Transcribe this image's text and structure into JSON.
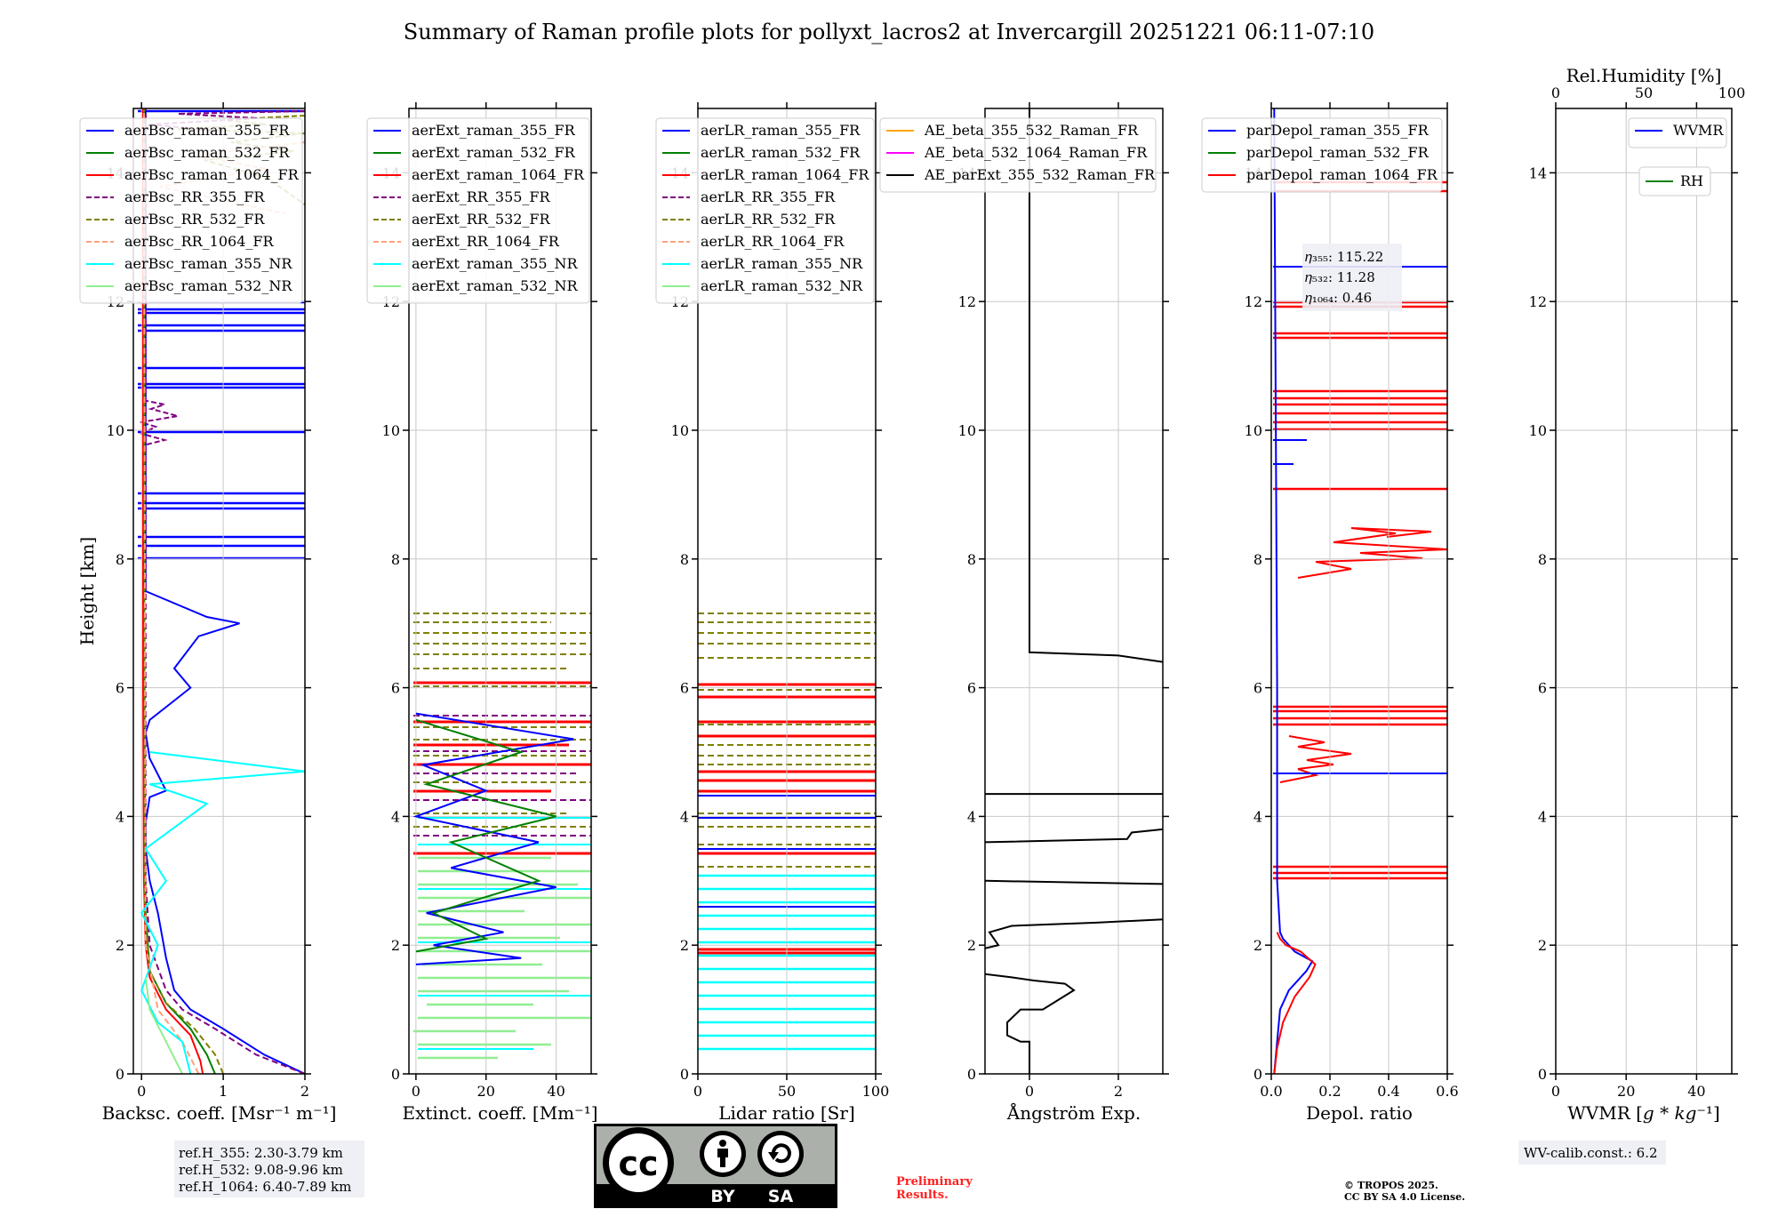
{
  "title": "Summary of Raman profile plots for pollyxt_lacros2 at Invercargill 20251221 06:11-07:10",
  "colors": {
    "blue": "#0000ff",
    "green": "#008000",
    "red": "#ff0000",
    "purple": "#800080",
    "olive": "#808000",
    "salmon": "#ffa07a",
    "cyan": "#00ffff",
    "lightgreen": "#90ee90",
    "orange": "#ffa500",
    "magenta": "#ff00ff",
    "black": "#000000"
  },
  "chart_data": [
    {
      "id": "bsc",
      "type": "line",
      "xlabel": "Backsc. coeff. [Msr⁻¹ m⁻¹]",
      "ylabel": "Height [km]",
      "xlim": [
        -0.1,
        2.0
      ],
      "ylim": [
        0,
        15
      ],
      "xticks": [
        0,
        1,
        2
      ],
      "xticklabels": [
        "0",
        "1",
        "2"
      ],
      "yticks": [
        0,
        2,
        4,
        6,
        8,
        10,
        12,
        14
      ],
      "yticklabels": [
        "0",
        "2",
        "4",
        "6",
        "8",
        "10",
        "12",
        "14"
      ],
      "legend": [
        "aerBsc_raman_355_FR",
        "aerBsc_raman_532_FR",
        "aerBsc_raman_1064_FR",
        "aerBsc_RR_355_FR",
        "aerBsc_RR_532_FR",
        "aerBsc_RR_1064_FR",
        "aerBsc_raman_355_NR",
        "aerBsc_raman_532_NR"
      ],
      "legend_colors": [
        "blue",
        "green",
        "red",
        "purple",
        "olive",
        "salmon",
        "cyan",
        "lightgreen"
      ],
      "legend_dashed": [
        false,
        false,
        false,
        true,
        true,
        true,
        false,
        false
      ],
      "series": [
        {
          "name": "aerBsc_raman_355_FR",
          "color": "blue",
          "x": [
            2.0,
            1.5,
            1.0,
            0.6,
            0.4,
            0.3,
            0.2,
            0.1,
            0.05,
            0.05,
            0.1,
            0.3,
            0.1,
            0.05,
            0.1,
            0.4,
            0.6,
            0.4,
            0.7,
            1.2,
            0.8,
            0.05,
            0.05
          ],
          "y": [
            0.0,
            0.3,
            0.7,
            1.0,
            1.3,
            1.8,
            2.5,
            3.0,
            3.5,
            3.9,
            4.3,
            4.4,
            4.9,
            5.3,
            5.5,
            5.8,
            6.0,
            6.3,
            6.8,
            7.0,
            7.1,
            7.5,
            15.0
          ]
        },
        {
          "name": "aerBsc_raman_532_FR",
          "color": "green",
          "x": [
            0.9,
            0.8,
            0.6,
            0.3,
            0.1,
            0.05,
            0.04,
            0.03,
            0.03
          ],
          "y": [
            0.0,
            0.3,
            0.7,
            1.1,
            1.6,
            2.5,
            5.0,
            8.0,
            15.0
          ]
        },
        {
          "name": "aerBsc_raman_1064_FR",
          "color": "red",
          "x": [
            0.75,
            0.72,
            0.6,
            0.3,
            0.1,
            0.05,
            0.03,
            0.02,
            0.02
          ],
          "y": [
            0.0,
            0.2,
            0.6,
            1.0,
            1.5,
            2.0,
            3.0,
            6.0,
            15.0
          ]
        },
        {
          "name": "aerBsc_RR_355_FR",
          "color": "purple",
          "x": [
            2.0,
            1.4,
            0.9,
            0.5,
            0.3,
            0.1,
            0.05,
            0.05
          ],
          "y": [
            0.0,
            0.3,
            0.7,
            1.0,
            1.3,
            2.0,
            3.0,
            15.0
          ]
        },
        {
          "name": "aerBsc_RR_532_FR",
          "color": "olive",
          "x": [
            1.0,
            0.9,
            0.65,
            0.3,
            0.1,
            0.04,
            0.03
          ],
          "y": [
            0.0,
            0.3,
            0.7,
            1.1,
            1.6,
            2.5,
            15.0
          ]
        },
        {
          "name": "aerBsc_RR_1064_FR",
          "color": "salmon",
          "x": [
            0.7,
            0.5,
            0.2,
            0.05,
            0.03
          ],
          "y": [
            0.0,
            0.5,
            1.0,
            2.0,
            15.0
          ]
        },
        {
          "name": "aerBsc_raman_355_NR",
          "color": "cyan",
          "x": [
            0.6,
            0.5,
            0.2,
            0.0,
            0.2,
            0.0,
            0.3,
            0.05,
            0.8,
            0.1,
            2.0,
            0.1
          ],
          "y": [
            0.0,
            0.5,
            0.8,
            1.3,
            2.0,
            2.5,
            3.0,
            3.5,
            4.2,
            4.5,
            4.7,
            5.0
          ]
        },
        {
          "name": "aerBsc_raman_532_NR",
          "color": "lightgreen",
          "x": [
            0.5,
            0.3,
            0.1,
            0.05
          ],
          "y": [
            0.0,
            0.5,
            1.0,
            1.5
          ]
        }
      ]
    },
    {
      "id": "ext",
      "type": "line",
      "xlabel": "Extinct. coeff. [Mm⁻¹]",
      "ylabel": "",
      "xlim": [
        -2,
        50
      ],
      "ylim": [
        0,
        15
      ],
      "xticks": [
        0,
        20,
        40
      ],
      "xticklabels": [
        "0",
        "20",
        "40"
      ],
      "yticks": [
        0,
        2,
        4,
        6,
        8,
        10,
        12,
        14
      ],
      "yticklabels": [
        "0",
        "2",
        "4",
        "6",
        "8",
        "10",
        "12",
        "14"
      ],
      "legend": [
        "aerExt_raman_355_FR",
        "aerExt_raman_532_FR",
        "aerExt_raman_1064_FR",
        "aerExt_RR_355_FR",
        "aerExt_RR_532_FR",
        "aerExt_RR_1064_FR",
        "aerExt_raman_355_NR",
        "aerExt_raman_532_NR"
      ],
      "legend_colors": [
        "blue",
        "green",
        "red",
        "purple",
        "olive",
        "salmon",
        "cyan",
        "lightgreen"
      ],
      "legend_dashed": [
        false,
        false,
        false,
        true,
        true,
        true,
        false,
        false
      ],
      "series": [
        {
          "name": "aerExt_raman_355_FR",
          "color": "blue",
          "x": [
            0,
            30,
            5,
            25,
            3,
            40,
            10,
            35,
            0,
            20,
            2,
            45,
            0
          ],
          "y": [
            1.7,
            1.8,
            2.0,
            2.2,
            2.5,
            2.9,
            3.2,
            3.6,
            4.0,
            4.4,
            4.8,
            5.2,
            5.6
          ]
        },
        {
          "name": "aerExt_raman_532_FR",
          "color": "green",
          "x": [
            0,
            20,
            5,
            35,
            10,
            40,
            3,
            30,
            0
          ],
          "y": [
            1.9,
            2.1,
            2.5,
            3.0,
            3.6,
            4.0,
            4.5,
            5.0,
            5.5
          ]
        }
      ]
    },
    {
      "id": "lr",
      "type": "line",
      "xlabel": "Lidar ratio [Sr]",
      "ylabel": "",
      "xlim": [
        0,
        100
      ],
      "ylim": [
        0,
        15
      ],
      "xticks": [
        0,
        50,
        100
      ],
      "xticklabels": [
        "0",
        "50",
        "100"
      ],
      "yticks": [
        0,
        2,
        4,
        6,
        8,
        10,
        12,
        14
      ],
      "yticklabels": [
        "0",
        "2",
        "4",
        "6",
        "8",
        "10",
        "12",
        "14"
      ],
      "legend": [
        "aerLR_raman_355_FR",
        "aerLR_raman_532_FR",
        "aerLR_raman_1064_FR",
        "aerLR_RR_355_FR",
        "aerLR_RR_532_FR",
        "aerLR_RR_1064_FR",
        "aerLR_raman_355_NR",
        "aerLR_raman_532_NR"
      ],
      "legend_colors": [
        "blue",
        "green",
        "red",
        "purple",
        "olive",
        "salmon",
        "cyan",
        "lightgreen"
      ],
      "legend_dashed": [
        false,
        false,
        false,
        true,
        true,
        true,
        false,
        false
      ],
      "series": []
    },
    {
      "id": "ae",
      "type": "line",
      "xlabel": "Ångström Exp.",
      "ylabel": "",
      "xlim": [
        -1,
        3
      ],
      "ylim": [
        0,
        15
      ],
      "xticks": [
        0,
        2
      ],
      "xticklabels": [
        "0",
        "2"
      ],
      "yticks": [
        0,
        2,
        4,
        6,
        8,
        10,
        12,
        14
      ],
      "yticklabels": [
        "0",
        "2",
        "4",
        "6",
        "8",
        "10",
        "12",
        "14"
      ],
      "legend": [
        "AE_beta_355_532_Raman_FR",
        "AE_beta_532_1064_Raman_FR",
        "AE_parExt_355_532_Raman_FR"
      ],
      "legend_colors": [
        "orange",
        "magenta",
        "black"
      ],
      "legend_dashed": [
        false,
        false,
        false
      ],
      "series": [
        {
          "name": "AE_parExt_355_532_Raman_FR",
          "color": "black",
          "segments": [
            {
              "x": [
                0,
                0,
                -0.2,
                -0.5,
                -0.5,
                -0.2,
                0.3,
                1.0,
                0.8,
                0.1,
                -0.4,
                -1.0
              ],
              "y": [
                0.0,
                0.5,
                0.5,
                0.6,
                0.8,
                1.0,
                1.0,
                1.3,
                1.4,
                1.45,
                1.5,
                1.55
              ]
            },
            {
              "x": [
                -1.0,
                -0.7,
                -0.9,
                -0.4,
                1.5,
                3.0
              ],
              "y": [
                1.95,
                2.0,
                2.2,
                2.3,
                2.35,
                2.4
              ]
            },
            {
              "x": [
                -1.0,
                3.0
              ],
              "y": [
                3.0,
                2.95
              ]
            },
            {
              "x": [
                -1.0,
                2.2,
                2.3,
                3.0
              ],
              "y": [
                3.6,
                3.65,
                3.75,
                3.8
              ]
            },
            {
              "x": [
                -1.0,
                3.0
              ],
              "y": [
                4.35,
                4.35
              ]
            },
            {
              "x": [
                3.0,
                2.0,
                0.0,
                0.0
              ],
              "y": [
                6.4,
                6.5,
                6.55,
                15.0
              ]
            }
          ]
        }
      ]
    },
    {
      "id": "depol",
      "type": "line",
      "xlabel": "Depol. ratio",
      "ylabel": "",
      "xlim": [
        0.0,
        0.6
      ],
      "ylim": [
        0,
        15
      ],
      "xticks": [
        0.0,
        0.2,
        0.4,
        0.6
      ],
      "xticklabels": [
        "0.0",
        "0.2",
        "0.4",
        "0.6"
      ],
      "yticks": [
        0,
        2,
        4,
        6,
        8,
        10,
        12,
        14
      ],
      "yticklabels": [
        "0",
        "2",
        "4",
        "6",
        "8",
        "10",
        "12",
        "14"
      ],
      "legend": [
        "parDepol_raman_355_FR",
        "parDepol_raman_532_FR",
        "parDepol_raman_1064_FR"
      ],
      "legend_colors": [
        "blue",
        "green",
        "red"
      ],
      "legend_dashed": [
        false,
        false,
        false
      ],
      "annotation_lines": [
        "𝜂₃₅₅: 115.22",
        "𝜂₅₃₂: 11.28",
        "𝜂₁₀₆₄: 0.46"
      ],
      "series": [
        {
          "name": "parDepol_raman_355_FR",
          "color": "blue",
          "x": [
            0.01,
            0.02,
            0.03,
            0.06,
            0.12,
            0.14,
            0.08,
            0.04,
            0.03,
            0.02,
            0.02,
            0.01
          ],
          "y": [
            0.0,
            0.5,
            1.0,
            1.3,
            1.6,
            1.75,
            1.9,
            2.1,
            2.2,
            3.0,
            6.0,
            15.0
          ]
        },
        {
          "name": "parDepol_raman_1064_FR",
          "color": "red",
          "x": [
            0.01,
            0.02,
            0.04,
            0.08,
            0.13,
            0.15,
            0.1,
            0.05,
            0.03,
            0.02
          ],
          "y": [
            0.0,
            0.4,
            0.8,
            1.2,
            1.5,
            1.7,
            1.9,
            2.0,
            2.1,
            2.2
          ]
        }
      ]
    },
    {
      "id": "wv",
      "type": "line",
      "xlabel": "WVMR [𝑔 * 𝑘𝑔⁻¹]",
      "ylabel": "",
      "xlim": [
        0,
        50
      ],
      "ylim": [
        0,
        15
      ],
      "xticks": [
        0,
        20,
        40
      ],
      "xticklabels": [
        "0",
        "20",
        "40"
      ],
      "top_xlabel": "Rel.Humidity [%]",
      "top_xlim": [
        0,
        100
      ],
      "top_xticks": [
        0,
        50,
        100
      ],
      "top_xticklabels": [
        "0",
        "50",
        "100"
      ],
      "yticks": [
        0,
        2,
        4,
        6,
        8,
        10,
        12,
        14
      ],
      "yticklabels": [
        "0",
        "2",
        "4",
        "6",
        "8",
        "10",
        "12",
        "14"
      ],
      "legend": [
        "WVMR"
      ],
      "legend_colors": [
        "blue"
      ],
      "legend_dashed": [
        false
      ],
      "legend2": [
        "RH"
      ],
      "legend2_colors": [
        "green"
      ],
      "series": []
    }
  ],
  "notes": {
    "ref_lines": [
      "ref.H_355: 2.30-3.79 km",
      "ref.H_532: 9.08-9.96 km",
      "ref.H_1064: 6.40-7.89 km"
    ],
    "preliminary": [
      "Preliminary",
      "Results."
    ],
    "copyright": [
      "© TROPOS 2025.",
      "CC BY SA 4.0 License."
    ],
    "wv_calib": "WV-calib.const.: 6.2",
    "cc_badge": [
      "cc",
      "BY",
      "SA"
    ]
  }
}
